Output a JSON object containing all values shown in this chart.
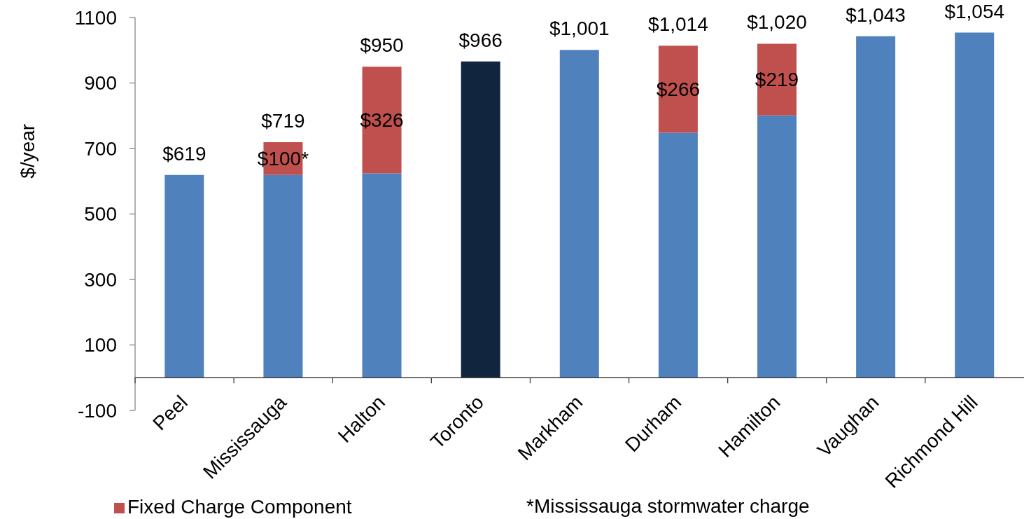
{
  "chart_data": {
    "type": "bar",
    "ylabel": "$/year",
    "categories": [
      "Peel",
      "Mississauga",
      "Halton",
      "Toronto",
      "Markham",
      "Durham",
      "Hamilton",
      "Vaughan",
      "Richmond Hill"
    ],
    "series": [
      {
        "colors": [
          "#4f81bd",
          "#4f81bd",
          "#4f81bd",
          "#12253f",
          "#4f81bd",
          "#4f81bd",
          "#4f81bd",
          "#4f81bd",
          "#4f81bd"
        ],
        "values": [
          619,
          619,
          624,
          966,
          1001,
          748,
          801,
          1043,
          1054
        ]
      },
      {
        "name": "Fixed Charge Component",
        "color": "#c0504d",
        "values": [
          null,
          100,
          326,
          null,
          null,
          266,
          219,
          null,
          null
        ],
        "value_labels": [
          null,
          "$100*",
          "$326",
          null,
          null,
          "$266",
          "$219",
          null,
          null
        ]
      }
    ],
    "stacked": true,
    "totals": [
      "$619",
      "$719",
      "$950",
      "$966",
      "$1,001",
      "$1,014",
      "$1,020",
      "$1,043",
      "$1,054"
    ],
    "ylim": [
      -100,
      1100
    ],
    "yticks": [
      -100,
      100,
      300,
      500,
      700,
      900,
      1100
    ],
    "legend": "bottom left",
    "annotations": [
      "*Mississauga stormwater charge"
    ]
  }
}
